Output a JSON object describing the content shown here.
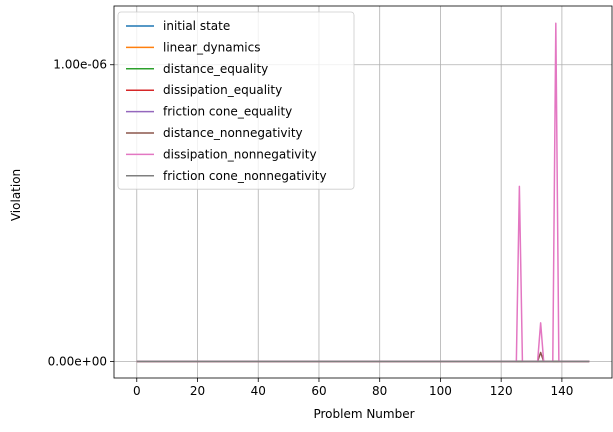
{
  "chart_data": {
    "type": "line",
    "title": "",
    "xlabel": "Problem Number",
    "ylabel": "Violation",
    "xlim": [
      -7.5,
      156.5
    ],
    "ylim": [
      -5.6e-08,
      1.198e-06
    ],
    "xticks": [
      0,
      20,
      40,
      60,
      80,
      100,
      120,
      140
    ],
    "xtick_labels": [
      "0",
      "20",
      "40",
      "60",
      "80",
      "100",
      "120",
      "140"
    ],
    "yticks": [
      0,
      1e-06
    ],
    "ytick_labels": [
      "0.00e+00",
      "1.00e-06"
    ],
    "grid": true,
    "legend_position": "top-left",
    "x_range": [
      0,
      149
    ],
    "series": [
      {
        "name": "initial state",
        "color": "#1f77b4",
        "points": [
          [
            0,
            0
          ],
          [
            149,
            0
          ]
        ]
      },
      {
        "name": "linear_dynamics",
        "color": "#ff7f0e",
        "points": [
          [
            0,
            0
          ],
          [
            149,
            0
          ]
        ]
      },
      {
        "name": "distance_equality",
        "color": "#2ca02c",
        "points": [
          [
            0,
            0
          ],
          [
            149,
            0
          ]
        ]
      },
      {
        "name": "dissipation_equality",
        "color": "#d62728",
        "points": [
          [
            0,
            0
          ],
          [
            149,
            0
          ]
        ]
      },
      {
        "name": "friction cone_equality",
        "color": "#9467bd",
        "points": [
          [
            0,
            0
          ],
          [
            149,
            0
          ]
        ]
      },
      {
        "name": "distance_nonnegativity",
        "color": "#8c564b",
        "points": [
          [
            0,
            0
          ],
          [
            132,
            0
          ],
          [
            133,
            3e-08
          ],
          [
            134,
            0
          ],
          [
            149,
            0
          ]
        ]
      },
      {
        "name": "dissipation_nonnegativity",
        "color": "#e377c2",
        "points": [
          [
            0,
            0
          ],
          [
            125,
            0
          ],
          [
            126,
            5.9e-07
          ],
          [
            127,
            0
          ],
          [
            132,
            0
          ],
          [
            133,
            1.3e-07
          ],
          [
            134,
            0
          ],
          [
            137,
            0
          ],
          [
            138,
            1.14e-06
          ],
          [
            139,
            0
          ],
          [
            149,
            0
          ]
        ]
      },
      {
        "name": "friction cone_nonnegativity",
        "color": "#7f7f7f",
        "points": [
          [
            0,
            0
          ],
          [
            149,
            0
          ]
        ]
      }
    ]
  }
}
